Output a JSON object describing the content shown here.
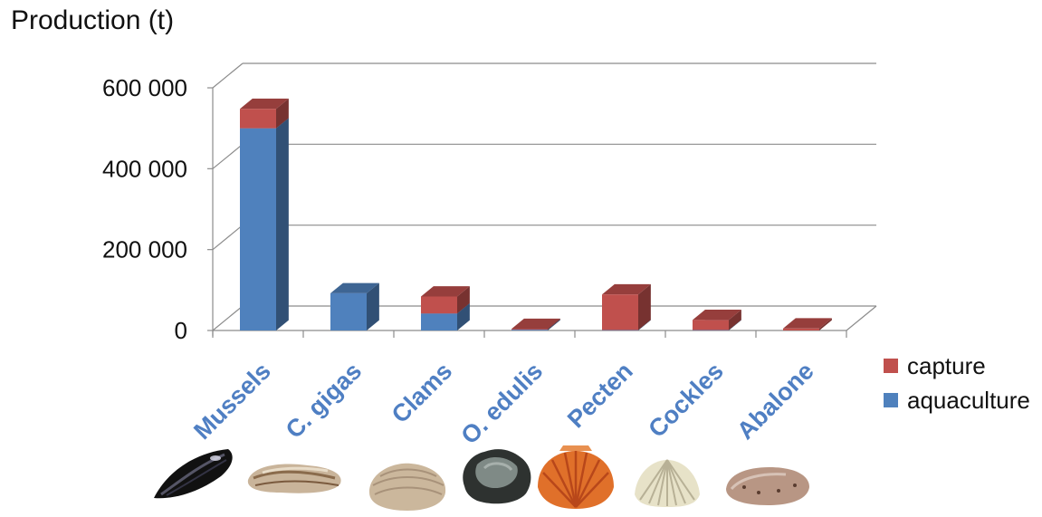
{
  "chart_data": {
    "type": "bar",
    "stacked": true,
    "three_d": true,
    "title": "",
    "xlabel": "",
    "ylabel": "Production (t)",
    "categories": [
      "Mussels",
      "C. gigas",
      "Clams",
      "O. edulis",
      "Pecten",
      "Cockles",
      "Abalone"
    ],
    "series": [
      {
        "name": "aquaculture",
        "color": "#4f81bd",
        "values": [
          500000,
          92000,
          42000,
          2000,
          1000,
          1000,
          0
        ]
      },
      {
        "name": "capture",
        "color": "#c0504d",
        "values": [
          48000,
          0,
          42000,
          2000,
          88000,
          25000,
          5000
        ]
      }
    ],
    "ylim": [
      0,
      600000
    ],
    "yticks": [
      0,
      200000,
      400000,
      600000
    ],
    "ytick_labels": [
      "0",
      "200 000",
      "400 000",
      "600 000"
    ],
    "grid": true,
    "legend_position": "right",
    "legend_order": [
      "capture",
      "aquaculture"
    ]
  },
  "category_icons": [
    "mussel-shell-icon",
    "oyster-shell-icon",
    "clam-shell-icon",
    "flat-oyster-shell-icon",
    "scallop-shell-icon",
    "cockle-shell-icon",
    "abalone-shell-icon"
  ]
}
